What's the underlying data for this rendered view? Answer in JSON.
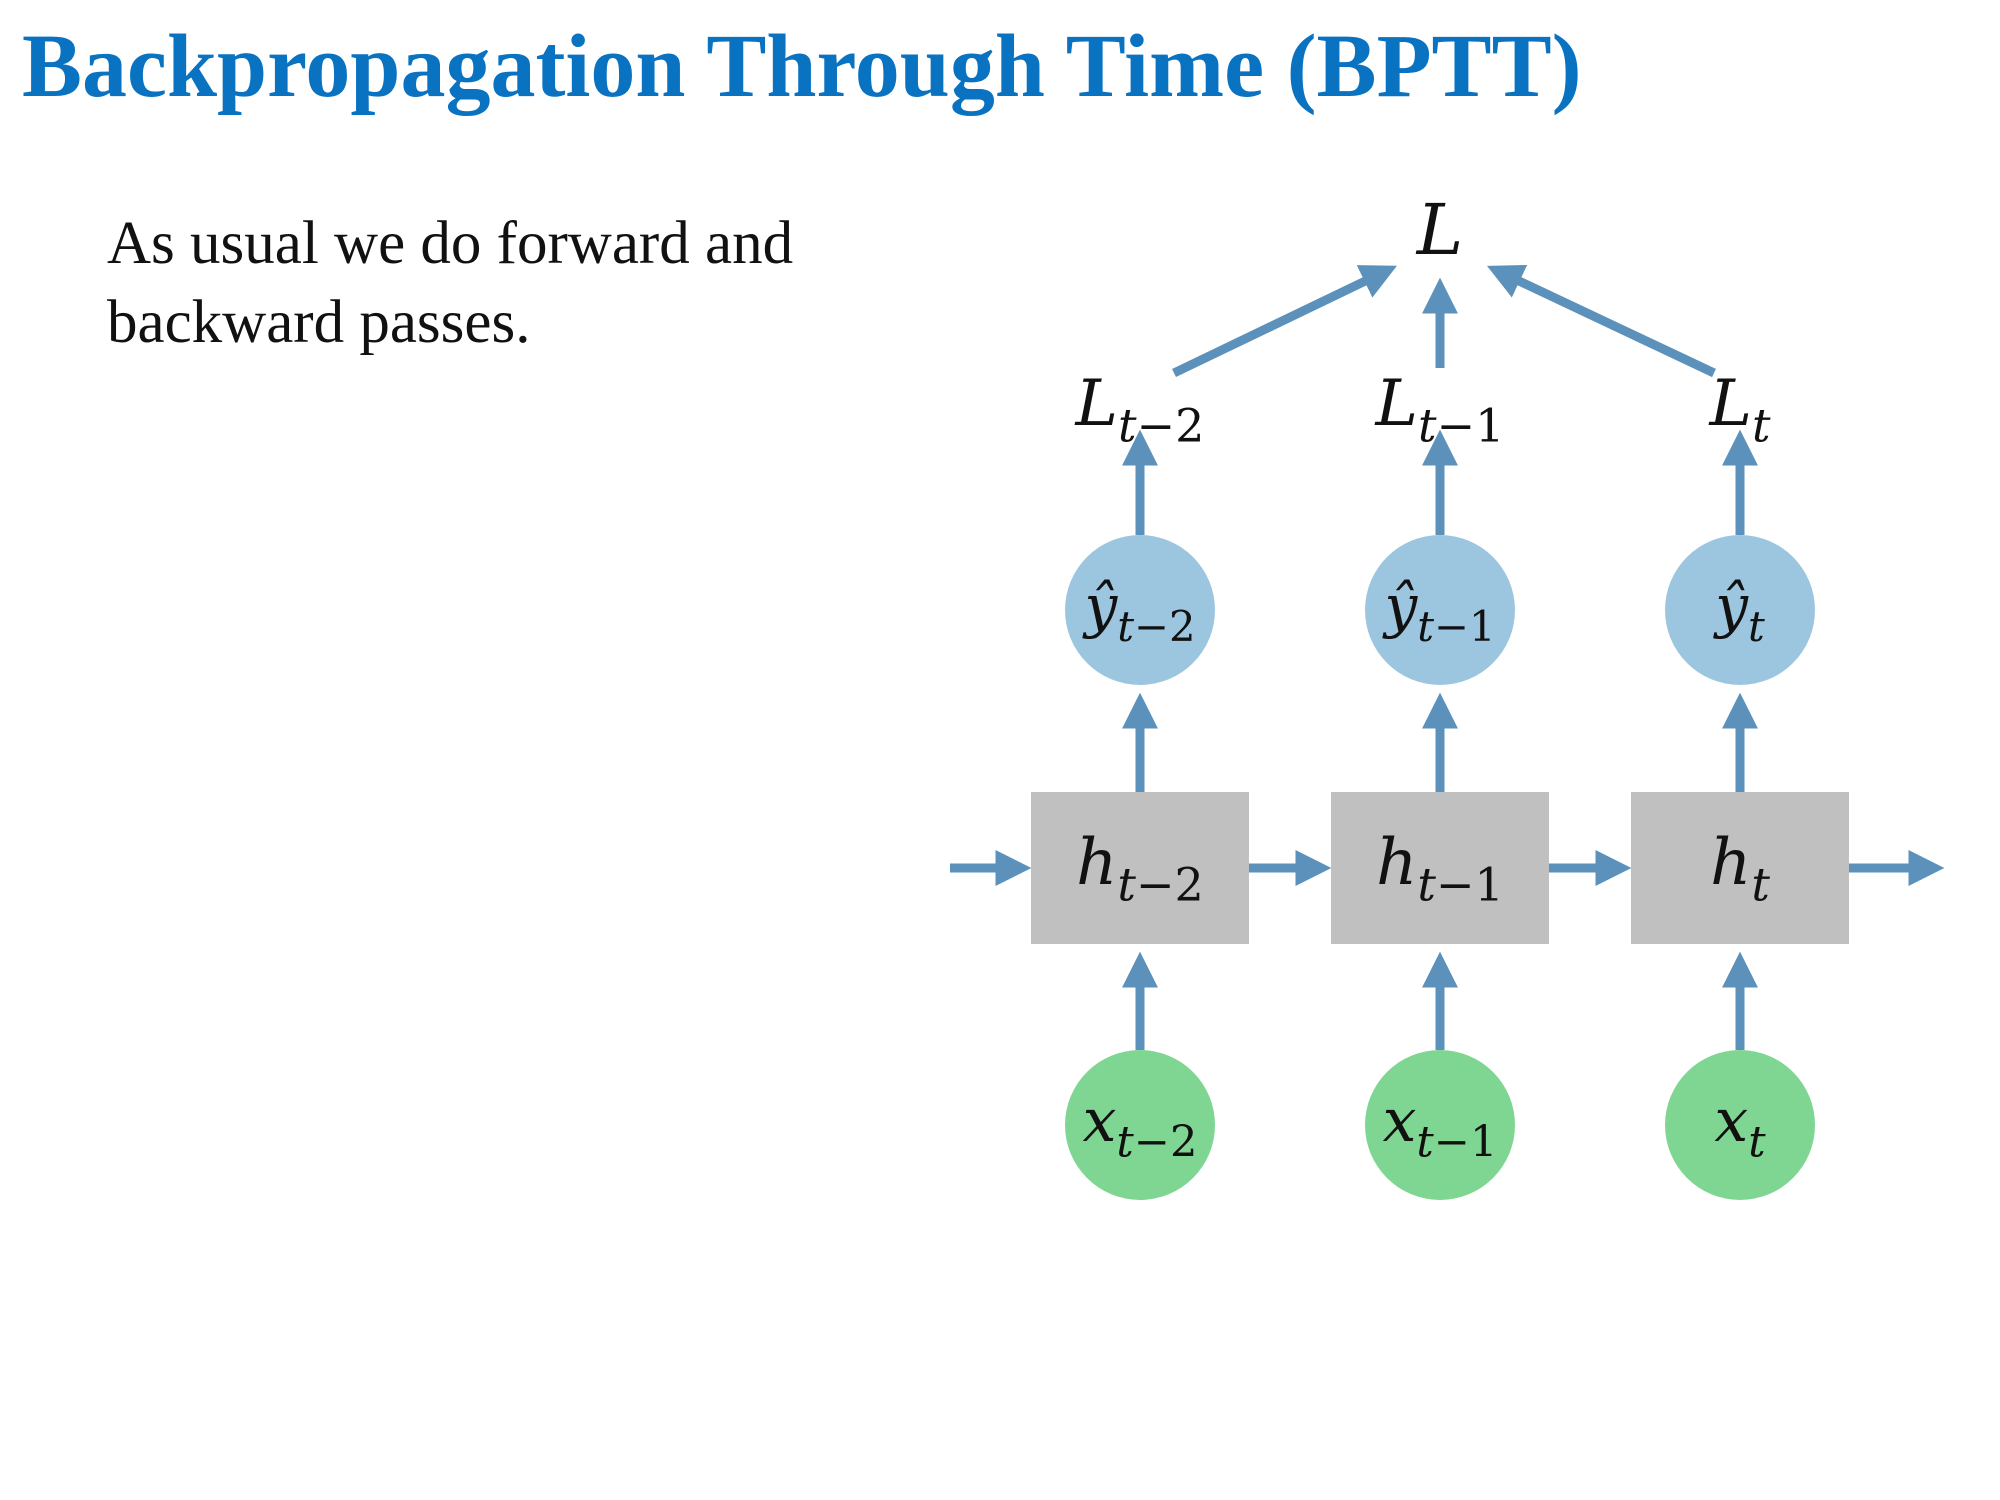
{
  "slide": {
    "title": "Backpropagation Through Time (BPTT)",
    "body_text": "As usual we do forward and backward passes."
  },
  "diagram": {
    "colors": {
      "arrow": "#5b91bb",
      "hidden_box": "#c0c0c0",
      "output_circle": "#9cc6e0",
      "input_circle": "#7fd693",
      "title": "#0a73c1",
      "text": "#111111"
    },
    "total_loss": {
      "base": "L"
    },
    "timesteps": [
      {
        "loss": {
          "base": "L",
          "sub_var": "t",
          "sub_rest": "−2"
        },
        "output": {
          "base": "ŷ",
          "sub_var": "t",
          "sub_rest": "−2"
        },
        "hidden": {
          "base": "h",
          "sub_var": "t",
          "sub_rest": "−2"
        },
        "input": {
          "base": "x",
          "sub_var": "t",
          "sub_rest": "−2"
        }
      },
      {
        "loss": {
          "base": "L",
          "sub_var": "t",
          "sub_rest": "−1"
        },
        "output": {
          "base": "ŷ",
          "sub_var": "t",
          "sub_rest": "−1"
        },
        "hidden": {
          "base": "h",
          "sub_var": "t",
          "sub_rest": "−1"
        },
        "input": {
          "base": "x",
          "sub_var": "t",
          "sub_rest": "−1"
        }
      },
      {
        "loss": {
          "base": "L",
          "sub_var": "t",
          "sub_rest": ""
        },
        "output": {
          "base": "ŷ",
          "sub_var": "t",
          "sub_rest": ""
        },
        "hidden": {
          "base": "h",
          "sub_var": "t",
          "sub_rest": ""
        },
        "input": {
          "base": "x",
          "sub_var": "t",
          "sub_rest": ""
        }
      }
    ]
  }
}
